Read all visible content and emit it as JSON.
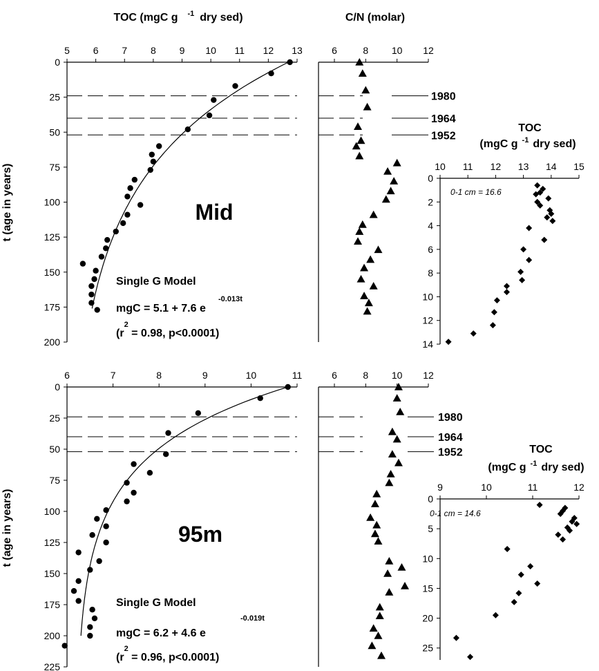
{
  "chart_data": [
    {
      "panel": "mid",
      "type": "scatter",
      "title": "TOC (mgC g -1 dry sed)",
      "title_parts": [
        "TOC (mgC g",
        "-1",
        "dry sed)"
      ],
      "ylabel": "t (age in years)",
      "xlim": [
        5,
        13
      ],
      "ylim": [
        0,
        200
      ],
      "y_inverted": true,
      "xticks": [
        "5",
        "6",
        "7",
        "8",
        "9",
        "10",
        "11",
        "12",
        "13"
      ],
      "yticks": [
        "0",
        "25",
        "50",
        "75",
        "100",
        "125",
        "150",
        "175",
        "200"
      ],
      "station_label": "Mid",
      "model_title": "Single G Model",
      "model_eq": "mgC = 5.1 + 7.6 e",
      "model_exp": "-0.013t",
      "fit_open": "(r",
      "fit_sup": "2",
      "fit_close": " = 0.98, p<0.0001)",
      "fit": {
        "a": 5.1,
        "b": 7.6,
        "k": 0.013,
        "t_range": [
          0,
          176
        ]
      },
      "points": [
        {
          "x": 12.75,
          "y": 0
        },
        {
          "x": 12.1,
          "y": 8
        },
        {
          "x": 10.85,
          "y": 17
        },
        {
          "x": 10.1,
          "y": 27
        },
        {
          "x": 9.95,
          "y": 38
        },
        {
          "x": 9.2,
          "y": 48
        },
        {
          "x": 8.2,
          "y": 60
        },
        {
          "x": 7.95,
          "y": 66
        },
        {
          "x": 8.0,
          "y": 71
        },
        {
          "x": 7.9,
          "y": 77
        },
        {
          "x": 7.35,
          "y": 84
        },
        {
          "x": 7.2,
          "y": 90
        },
        {
          "x": 7.1,
          "y": 96
        },
        {
          "x": 7.55,
          "y": 102
        },
        {
          "x": 7.1,
          "y": 109
        },
        {
          "x": 6.95,
          "y": 115
        },
        {
          "x": 6.7,
          "y": 121
        },
        {
          "x": 6.4,
          "y": 127
        },
        {
          "x": 6.35,
          "y": 133
        },
        {
          "x": 6.2,
          "y": 139
        },
        {
          "x": 5.55,
          "y": 144
        },
        {
          "x": 6.0,
          "y": 149
        },
        {
          "x": 5.95,
          "y": 155
        },
        {
          "x": 5.85,
          "y": 160
        },
        {
          "x": 5.85,
          "y": 166
        },
        {
          "x": 5.85,
          "y": 172
        },
        {
          "x": 6.05,
          "y": 177
        }
      ]
    },
    {
      "panel": "mid",
      "type": "scatter",
      "title": "C/N (molar)",
      "xlim": [
        6,
        12
      ],
      "ylim": [
        0,
        200
      ],
      "y_inverted": true,
      "xticks": [
        "6",
        "8",
        "10",
        "12"
      ],
      "marker": "triangle",
      "points": [
        {
          "x": 7.6,
          "y": 0
        },
        {
          "x": 7.8,
          "y": 8
        },
        {
          "x": 8.0,
          "y": 20
        },
        {
          "x": 8.1,
          "y": 32
        },
        {
          "x": 7.5,
          "y": 46
        },
        {
          "x": 7.7,
          "y": 56
        },
        {
          "x": 7.4,
          "y": 60
        },
        {
          "x": 7.6,
          "y": 67
        },
        {
          "x": 10.0,
          "y": 72
        },
        {
          "x": 9.4,
          "y": 78
        },
        {
          "x": 9.8,
          "y": 85
        },
        {
          "x": 9.6,
          "y": 92
        },
        {
          "x": 9.3,
          "y": 98
        },
        {
          "x": 8.5,
          "y": 109
        },
        {
          "x": 7.8,
          "y": 116
        },
        {
          "x": 7.6,
          "y": 121
        },
        {
          "x": 7.5,
          "y": 128
        },
        {
          "x": 8.8,
          "y": 134
        },
        {
          "x": 8.3,
          "y": 141
        },
        {
          "x": 7.9,
          "y": 147
        },
        {
          "x": 7.7,
          "y": 155
        },
        {
          "x": 8.5,
          "y": 160
        },
        {
          "x": 7.9,
          "y": 167
        },
        {
          "x": 8.2,
          "y": 172
        },
        {
          "x": 8.1,
          "y": 178
        }
      ]
    },
    {
      "panel": "mid-inset",
      "type": "scatter",
      "title_line1": "TOC",
      "title_line2_parts": [
        "(mgC g",
        "-1",
        "dry sed)"
      ],
      "xlim": [
        10,
        15
      ],
      "ylim": [
        0,
        14
      ],
      "y_inverted": true,
      "xticks": [
        "10",
        "11",
        "12",
        "13",
        "14",
        "15"
      ],
      "yticks": [
        "0",
        "2",
        "4",
        "6",
        "8",
        "10",
        "12",
        "14"
      ],
      "note": "0-1 cm = 16.6",
      "marker": "diamond",
      "points": [
        {
          "x": 13.5,
          "y": 0.6
        },
        {
          "x": 13.7,
          "y": 0.9
        },
        {
          "x": 13.6,
          "y": 1.2
        },
        {
          "x": 13.45,
          "y": 1.35
        },
        {
          "x": 13.9,
          "y": 1.7
        },
        {
          "x": 13.5,
          "y": 2.0
        },
        {
          "x": 13.6,
          "y": 2.3
        },
        {
          "x": 13.95,
          "y": 2.7
        },
        {
          "x": 14.0,
          "y": 3.0
        },
        {
          "x": 13.85,
          "y": 3.3
        },
        {
          "x": 14.05,
          "y": 3.6
        },
        {
          "x": 13.2,
          "y": 4.2
        },
        {
          "x": 13.75,
          "y": 5.2
        },
        {
          "x": 13.0,
          "y": 6.0
        },
        {
          "x": 13.2,
          "y": 6.9
        },
        {
          "x": 12.9,
          "y": 7.9
        },
        {
          "x": 12.95,
          "y": 8.6
        },
        {
          "x": 12.4,
          "y": 9.1
        },
        {
          "x": 12.4,
          "y": 9.6
        },
        {
          "x": 12.05,
          "y": 10.3
        },
        {
          "x": 11.95,
          "y": 11.3
        },
        {
          "x": 11.9,
          "y": 12.4
        },
        {
          "x": 11.2,
          "y": 13.1
        },
        {
          "x": 10.3,
          "y": 13.8
        }
      ]
    },
    {
      "panel": "95m",
      "type": "scatter",
      "title": "",
      "ylabel": "t (age in years)",
      "xlim": [
        6,
        11
      ],
      "ylim": [
        0,
        225
      ],
      "y_inverted": true,
      "xticks": [
        "6",
        "7",
        "8",
        "9",
        "10",
        "11"
      ],
      "yticks": [
        "0",
        "25",
        "50",
        "75",
        "100",
        "125",
        "150",
        "175",
        "200",
        "225"
      ],
      "station_label": "95m",
      "model_title": "Single G Model",
      "model_eq": "mgC = 6.2 + 4.6 e",
      "model_exp": "-0.019t",
      "fit_open": "(r",
      "fit_sup": "2",
      "fit_close": " = 0.96, p<0.0001)",
      "fit": {
        "a": 6.2,
        "b": 4.6,
        "k": 0.019,
        "t_range": [
          0,
          200
        ]
      },
      "points": [
        {
          "x": 10.8,
          "y": 0
        },
        {
          "x": 10.2,
          "y": 9
        },
        {
          "x": 8.85,
          "y": 21
        },
        {
          "x": 8.2,
          "y": 37
        },
        {
          "x": 8.15,
          "y": 54
        },
        {
          "x": 7.45,
          "y": 62
        },
        {
          "x": 7.8,
          "y": 69
        },
        {
          "x": 7.3,
          "y": 77
        },
        {
          "x": 7.45,
          "y": 85
        },
        {
          "x": 7.3,
          "y": 92
        },
        {
          "x": 6.85,
          "y": 99
        },
        {
          "x": 6.65,
          "y": 106
        },
        {
          "x": 6.85,
          "y": 112
        },
        {
          "x": 6.55,
          "y": 119
        },
        {
          "x": 6.85,
          "y": 125
        },
        {
          "x": 6.25,
          "y": 133
        },
        {
          "x": 6.7,
          "y": 140
        },
        {
          "x": 6.5,
          "y": 147
        },
        {
          "x": 6.25,
          "y": 156
        },
        {
          "x": 6.15,
          "y": 164
        },
        {
          "x": 6.25,
          "y": 172
        },
        {
          "x": 6.55,
          "y": 179
        },
        {
          "x": 6.6,
          "y": 186
        },
        {
          "x": 6.5,
          "y": 193
        },
        {
          "x": 6.5,
          "y": 200
        },
        {
          "x": 5.95,
          "y": 208
        }
      ]
    },
    {
      "panel": "95m",
      "type": "scatter",
      "title": "",
      "xlim": [
        6,
        12
      ],
      "ylim": [
        0,
        225
      ],
      "y_inverted": true,
      "xticks": [
        "6",
        "8",
        "10",
        "12"
      ],
      "marker": "triangle",
      "points": [
        {
          "x": 10.1,
          "y": 0
        },
        {
          "x": 10.0,
          "y": 9
        },
        {
          "x": 10.2,
          "y": 20
        },
        {
          "x": 9.7,
          "y": 36
        },
        {
          "x": 10.0,
          "y": 42
        },
        {
          "x": 9.7,
          "y": 54
        },
        {
          "x": 10.1,
          "y": 61
        },
        {
          "x": 9.6,
          "y": 70
        },
        {
          "x": 9.5,
          "y": 77
        },
        {
          "x": 8.7,
          "y": 86
        },
        {
          "x": 8.6,
          "y": 94
        },
        {
          "x": 8.3,
          "y": 105
        },
        {
          "x": 8.7,
          "y": 111
        },
        {
          "x": 8.6,
          "y": 118
        },
        {
          "x": 8.8,
          "y": 124
        },
        {
          "x": 9.5,
          "y": 140
        },
        {
          "x": 9.4,
          "y": 150
        },
        {
          "x": 10.3,
          "y": 145
        },
        {
          "x": 10.5,
          "y": 160
        },
        {
          "x": 9.5,
          "y": 165
        },
        {
          "x": 8.9,
          "y": 177
        },
        {
          "x": 8.9,
          "y": 184
        },
        {
          "x": 8.5,
          "y": 194
        },
        {
          "x": 8.8,
          "y": 200
        },
        {
          "x": 8.4,
          "y": 208
        },
        {
          "x": 9.0,
          "y": 216
        }
      ]
    },
    {
      "panel": "95m-inset",
      "type": "scatter",
      "title_line1": "TOC",
      "title_line2_parts": [
        "(mgC g",
        "-1",
        "dry sed)"
      ],
      "xlim": [
        9,
        12
      ],
      "ylim": [
        0,
        27
      ],
      "y_inverted": true,
      "xticks": [
        "9",
        "10",
        "11",
        "12"
      ],
      "yticks": [
        "0",
        "5",
        "10",
        "15",
        "20",
        "25"
      ],
      "note": "0-1 cm = 14.6",
      "marker": "diamond",
      "points": [
        {
          "x": 11.15,
          "y": 1.0
        },
        {
          "x": 11.7,
          "y": 1.5
        },
        {
          "x": 11.65,
          "y": 2.0
        },
        {
          "x": 11.6,
          "y": 2.5
        },
        {
          "x": 11.9,
          "y": 3.2
        },
        {
          "x": 11.85,
          "y": 3.8
        },
        {
          "x": 11.95,
          "y": 4.2
        },
        {
          "x": 11.75,
          "y": 4.8
        },
        {
          "x": 11.8,
          "y": 5.3
        },
        {
          "x": 11.55,
          "y": 6.0
        },
        {
          "x": 11.65,
          "y": 6.8
        },
        {
          "x": 10.45,
          "y": 8.4
        },
        {
          "x": 10.95,
          "y": 11.3
        },
        {
          "x": 10.75,
          "y": 12.7
        },
        {
          "x": 11.1,
          "y": 14.2
        },
        {
          "x": 10.7,
          "y": 15.8
        },
        {
          "x": 10.6,
          "y": 17.3
        },
        {
          "x": 10.2,
          "y": 19.5
        },
        {
          "x": 9.35,
          "y": 23.3
        },
        {
          "x": 9.65,
          "y": 26.5
        }
      ]
    }
  ],
  "dates": [
    {
      "label": "1980",
      "t": 24
    },
    {
      "label": "1964",
      "t": 40
    },
    {
      "label": "1952",
      "t": 52
    }
  ]
}
